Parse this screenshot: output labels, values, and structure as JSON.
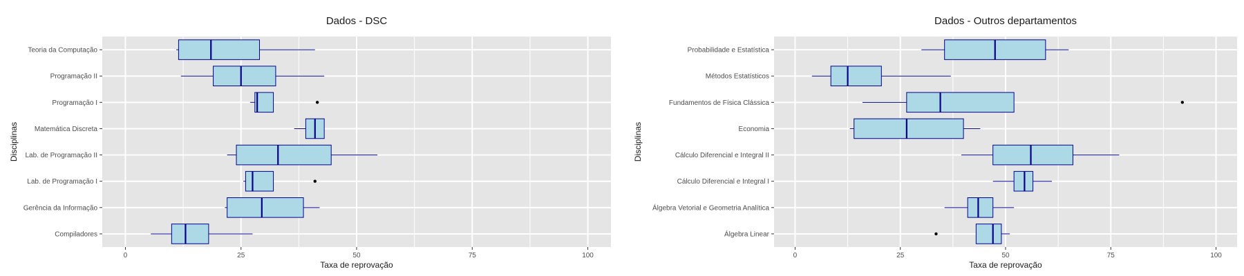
{
  "colors": {
    "panel_bg": "#e5e5e5",
    "grid": "#ffffff",
    "box_fill": "#add8e6",
    "box_stroke": "#00008b",
    "outlier": "#000000",
    "tick_text": "#4d4d4d"
  },
  "chart_data": [
    {
      "type": "boxplot",
      "orientation": "horizontal",
      "title": "Dados - DSC",
      "xlabel": "Taxa de reprovação",
      "ylabel": "Disciplinas",
      "xlim": [
        -5,
        105
      ],
      "xticks": [
        0,
        25,
        50,
        75,
        100
      ],
      "grid": true,
      "categories": [
        "Compiladores",
        "Gerência da Informação",
        "Lab. de Programação I",
        "Lab. de Programação II",
        "Matemática Discreta",
        "Programação I",
        "Programação II",
        "Teoria da Computação"
      ],
      "boxes": [
        {
          "name": "Compiladores",
          "min": 5.5,
          "q1": 10,
          "median": 13,
          "q3": 18,
          "max": 27.5,
          "outliers": []
        },
        {
          "name": "Gerência da Informação",
          "min": 21.5,
          "q1": 22,
          "median": 29.5,
          "q3": 38.5,
          "max": 42,
          "outliers": []
        },
        {
          "name": "Lab. de Programação I",
          "min": 25.5,
          "q1": 26,
          "median": 27.5,
          "q3": 32,
          "max": 32,
          "outliers": [
            41
          ]
        },
        {
          "name": "Lab. de Programação II",
          "min": 22,
          "q1": 24,
          "median": 33,
          "q3": 44.5,
          "max": 54.5,
          "outliers": []
        },
        {
          "name": "Matemática Discreta",
          "min": 36.5,
          "q1": 39,
          "median": 41,
          "q3": 43,
          "max": 43,
          "outliers": []
        },
        {
          "name": "Programação I",
          "min": 27,
          "q1": 28,
          "median": 28.5,
          "q3": 32,
          "max": 32,
          "outliers": [
            41.5
          ]
        },
        {
          "name": "Programação II",
          "min": 12,
          "q1": 19,
          "median": 25,
          "q3": 32.5,
          "max": 43,
          "outliers": []
        },
        {
          "name": "Teoria da Computação",
          "min": 11,
          "q1": 11.5,
          "median": 18.5,
          "q3": 29,
          "max": 41,
          "outliers": []
        }
      ]
    },
    {
      "type": "boxplot",
      "orientation": "horizontal",
      "title": "Dados - Outros departamentos",
      "xlabel": "Taxa de reprovação",
      "ylabel": "Disciplinas",
      "xlim": [
        -5,
        105
      ],
      "xticks": [
        0,
        25,
        50,
        75,
        100
      ],
      "grid": true,
      "categories": [
        "Álgebra Linear",
        "Álgebra Vetorial e Geometria Analítica",
        "Cálculo Diferencial e Integral I",
        "Cálculo Diferencial e Integral II",
        "Economia",
        "Fundamentos de Física Clássica",
        "Métodos Estatísticos",
        "Probabilidade e Estatística"
      ],
      "boxes": [
        {
          "name": "Álgebra Linear",
          "min": 43,
          "q1": 43,
          "median": 47,
          "q3": 49,
          "max": 51,
          "outliers": [
            33.5
          ]
        },
        {
          "name": "Álgebra Vetorial e Geometria Analítica",
          "min": 35.5,
          "q1": 41,
          "median": 43.5,
          "q3": 47,
          "max": 52,
          "outliers": []
        },
        {
          "name": "Cálculo Diferencial e Integral I",
          "min": 47,
          "q1": 52,
          "median": 54.5,
          "q3": 56.5,
          "max": 61,
          "outliers": []
        },
        {
          "name": "Cálculo Diferencial e Integral II",
          "min": 39.5,
          "q1": 47,
          "median": 56,
          "q3": 66,
          "max": 77,
          "outliers": []
        },
        {
          "name": "Economia",
          "min": 13,
          "q1": 14,
          "median": 26.5,
          "q3": 40,
          "max": 44,
          "outliers": []
        },
        {
          "name": "Fundamentos de Física Clássica",
          "min": 16,
          "q1": 26.5,
          "median": 34.5,
          "q3": 52,
          "max": 52,
          "outliers": [
            92
          ]
        },
        {
          "name": "Métodos Estatísticos",
          "min": 4,
          "q1": 8.5,
          "median": 12.5,
          "q3": 20.5,
          "max": 37,
          "outliers": []
        },
        {
          "name": "Probabilidade e Estatística",
          "min": 30,
          "q1": 35.5,
          "median": 47.5,
          "q3": 59.5,
          "max": 65,
          "outliers": []
        }
      ]
    }
  ]
}
